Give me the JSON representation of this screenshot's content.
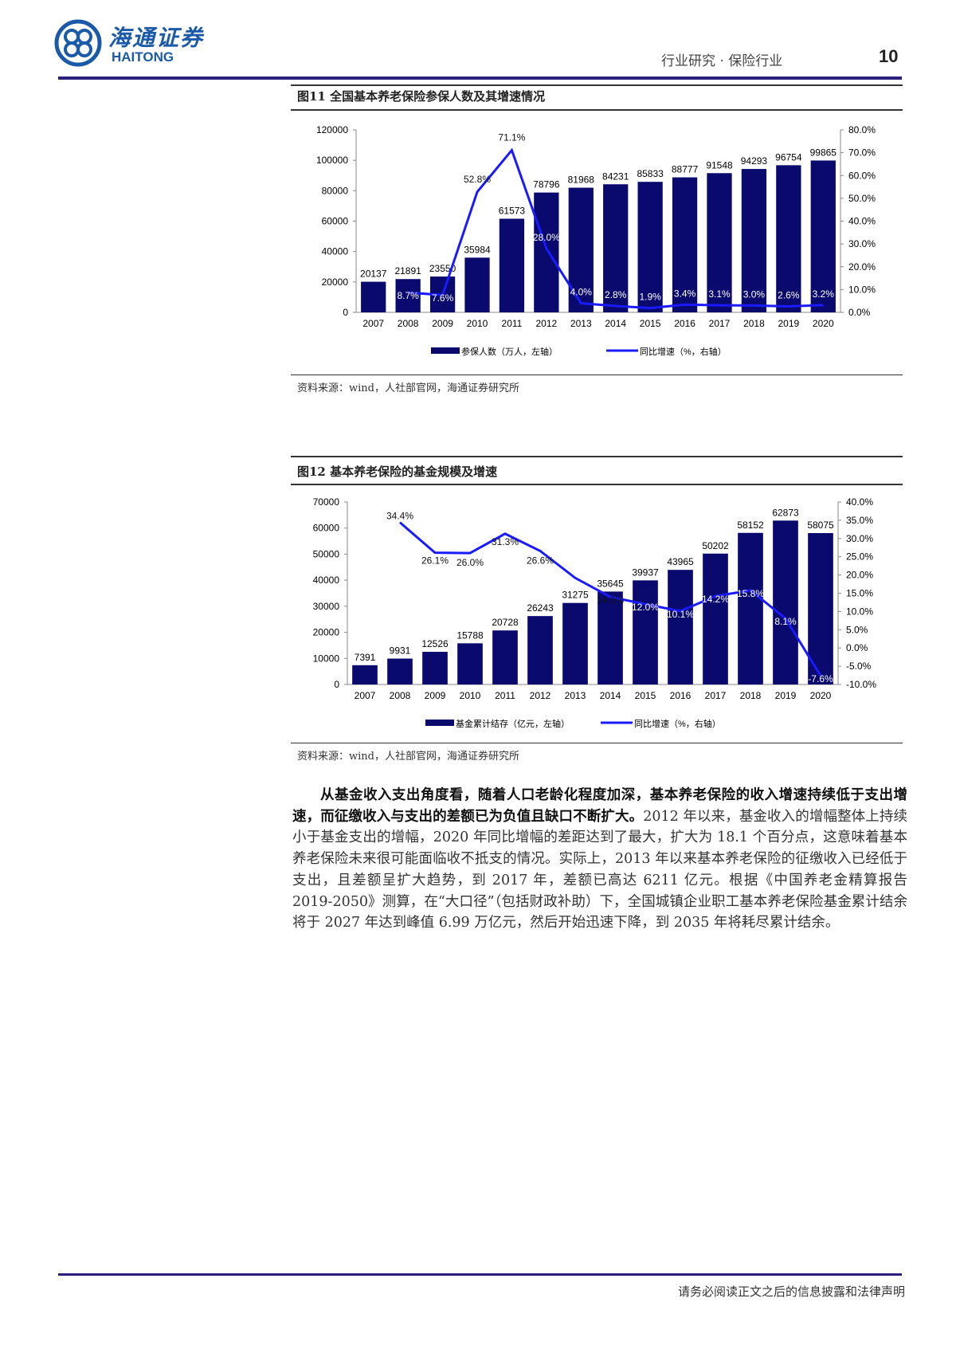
{
  "header": {
    "logo_cn": "海通证券",
    "logo_en": "HAITONG",
    "section": "行业研究 · 保险行业",
    "page_number": "10",
    "brand_color": "#2a1f7a"
  },
  "figures": [
    {
      "title": "图11 全国基本养老保险参保人数及其增速情况",
      "source": "资料来源：wind，人社部官网，海通证券研究所"
    },
    {
      "title": "图12 基本养老保险的基金规模及增速",
      "source": "资料来源：wind，人社部官网，海通证券研究所"
    }
  ],
  "chart_data": [
    {
      "type": "bar+line",
      "categories": [
        "2007",
        "2008",
        "2009",
        "2010",
        "2011",
        "2012",
        "2013",
        "2014",
        "2015",
        "2016",
        "2017",
        "2018",
        "2019",
        "2020"
      ],
      "series": [
        {
          "name": "参保人数（万人，左轴）",
          "type": "bar",
          "axis": "left",
          "color": "#0a0a6e",
          "values": [
            20137,
            21891,
            23550,
            35984,
            61573,
            78796,
            81968,
            84231,
            85833,
            88777,
            91548,
            94293,
            96754,
            99865
          ]
        },
        {
          "name": "同比增速（%，右轴）",
          "type": "line",
          "axis": "right",
          "color": "#1a1aff",
          "values": [
            null,
            8.7,
            7.6,
            52.8,
            71.1,
            28.0,
            4.0,
            2.8,
            1.9,
            3.4,
            3.1,
            3.0,
            2.6,
            3.2
          ]
        }
      ],
      "ylim_left": [
        0,
        120000
      ],
      "yticks_left": [
        "0",
        "20000",
        "40000",
        "60000",
        "80000",
        "100000",
        "120000"
      ],
      "ylim_right": [
        0,
        80
      ],
      "yticks_right": [
        "0.0%",
        "10.0%",
        "20.0%",
        "30.0%",
        "40.0%",
        "50.0%",
        "60.0%",
        "70.0%",
        "80.0%"
      ],
      "legend": "bottom",
      "grid": false
    },
    {
      "type": "bar+line",
      "categories": [
        "2007",
        "2008",
        "2009",
        "2010",
        "2011",
        "2012",
        "2013",
        "2014",
        "2015",
        "2016",
        "2017",
        "2018",
        "2019",
        "2020"
      ],
      "series": [
        {
          "name": "基金累计结存（亿元，左轴）",
          "type": "bar",
          "axis": "left",
          "color": "#0a0a6e",
          "values": [
            7391,
            9931,
            12526,
            15788,
            20728,
            26243,
            31275,
            35645,
            39937,
            43965,
            50202,
            58152,
            62873,
            58075
          ]
        },
        {
          "name": "同比增速（%，右轴）",
          "type": "line",
          "axis": "right",
          "color": "#1a1aff",
          "values": [
            null,
            34.4,
            26.1,
            26.0,
            31.3,
            26.6,
            19.2,
            14.0,
            12.0,
            10.1,
            14.2,
            15.8,
            8.1,
            -7.6
          ],
          "labels": [
            null,
            "34.4%",
            "26.1%",
            "26.0%",
            "31.3%",
            "26.6%",
            null,
            "14.0%",
            "12.0%",
            "10.1%",
            "14.2%",
            "15.8%",
            "8.1%",
            "-7.6%"
          ]
        }
      ],
      "ylim_left": [
        0,
        70000
      ],
      "yticks_left": [
        "0",
        "10000",
        "20000",
        "30000",
        "40000",
        "50000",
        "60000",
        "70000"
      ],
      "ylim_right": [
        -10,
        40
      ],
      "yticks_right": [
        "-10.0%",
        "-5.0%",
        "0.0%",
        "5.0%",
        "10.0%",
        "15.0%",
        "20.0%",
        "25.0%",
        "30.0%",
        "35.0%",
        "40.0%"
      ],
      "legend": "bottom",
      "grid": false
    }
  ],
  "body": {
    "bold": "从基金收入支出角度看，随着人口老龄化程度加深，基本养老保险的收入增速持续低于支出增速，而征缴收入与支出的差额已为负值且缺口不断扩大。",
    "text": "2012 年以来，基金收入的增幅整体上持续小于基金支出的增幅，2020 年同比增幅的差距达到了最大，扩大为 18.1 个百分点，这意味着基本养老保险未来很可能面临收不抵支的情况。实际上，2013 年以来基本养老保险的征缴收入已经低于支出，且差额呈扩大趋势，到 2017 年，差额已高达 6211 亿元。根据《中国养老金精算报告 2019-2050》测算，在“大口径”（包括财政补助）下，全国城镇企业职工基本养老保险基金累计结余将于 2027 年达到峰值 6.99 万亿元，然后开始迅速下降，到 2035 年将耗尽累计结余。"
  },
  "footer": {
    "disclaimer": "请务必阅读正文之后的信息披露和法律声明"
  }
}
